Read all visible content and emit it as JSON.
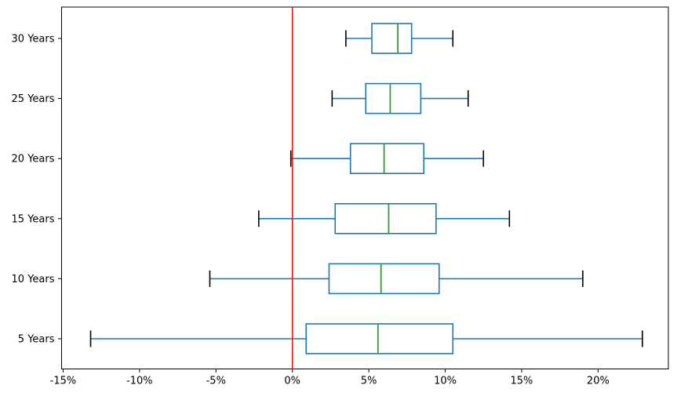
{
  "figure": {
    "description": "Horizontal box plot of annualized return ranges by holding period, with a red reference line at 0%"
  },
  "chart_data": {
    "type": "boxplot",
    "orientation": "horizontal",
    "unit": "%",
    "title": "",
    "xlabel": "",
    "ylabel": "",
    "grid": false,
    "legend": null,
    "xlim": [
      -15.1,
      24.6
    ],
    "x_ticks": [
      {
        "value": -15,
        "label": "-15%"
      },
      {
        "value": -10,
        "label": "-10%"
      },
      {
        "value": -5,
        "label": "-5%"
      },
      {
        "value": 0,
        "label": "0%"
      },
      {
        "value": 5,
        "label": "5%"
      },
      {
        "value": 10,
        "label": "10%"
      },
      {
        "value": 15,
        "label": "15%"
      },
      {
        "value": 20,
        "label": "20%"
      }
    ],
    "rows_top_to_bottom": [
      {
        "label": "30 Years",
        "whisker_low": 3.5,
        "q1": 5.2,
        "median": 6.9,
        "q3": 7.8,
        "whisker_high": 10.5
      },
      {
        "label": "25 Years",
        "whisker_low": 2.6,
        "q1": 4.8,
        "median": 6.4,
        "q3": 8.4,
        "whisker_high": 11.5
      },
      {
        "label": "20 Years",
        "whisker_low": -0.1,
        "q1": 3.8,
        "median": 6.0,
        "q3": 8.6,
        "whisker_high": 12.5
      },
      {
        "label": "15 Years",
        "whisker_low": -2.2,
        "q1": 2.8,
        "median": 6.3,
        "q3": 9.4,
        "whisker_high": 14.2
      },
      {
        "label": "10 Years",
        "whisker_low": -5.4,
        "q1": 2.4,
        "median": 5.8,
        "q3": 9.6,
        "whisker_high": 19.0
      },
      {
        "label": "5 Years",
        "whisker_low": -13.2,
        "q1": 0.9,
        "median": 5.6,
        "q3": 10.5,
        "whisker_high": 22.9
      }
    ],
    "reference_line": {
      "value": 0,
      "color": "#ff0000"
    },
    "colors": {
      "box": "#1f77b4",
      "whisker": "#1f77b4",
      "median": "#2ca02c",
      "cap": "#000000",
      "spine": "#000000",
      "tick_label": "#000000",
      "background": "#ffffff"
    }
  }
}
